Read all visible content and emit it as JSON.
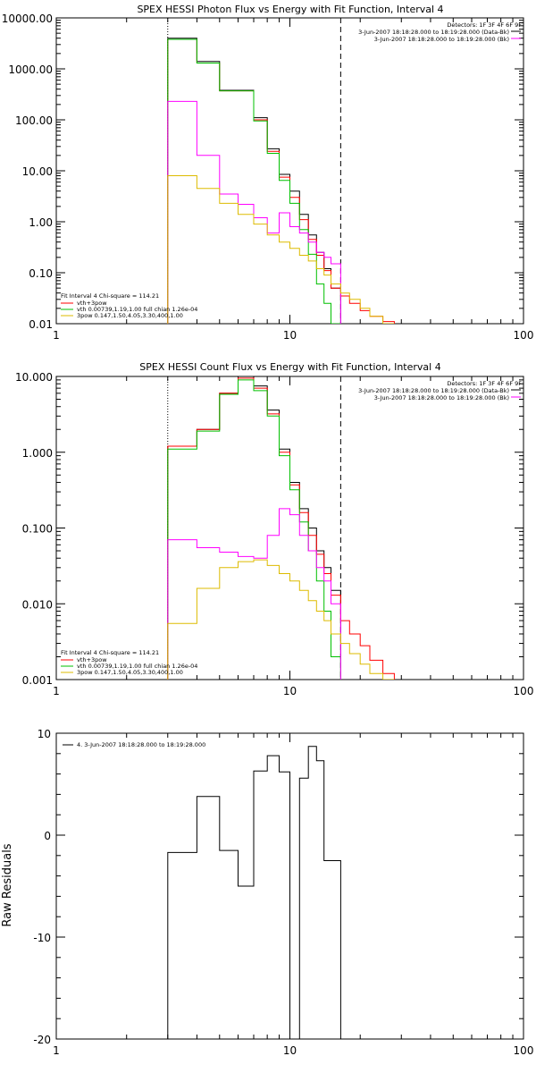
{
  "chart_data": [
    {
      "type": "line",
      "title": "SPEX HESSI Photon Flux vs Energy with Fit Function, Interval 4",
      "xscale": "log",
      "yscale": "log",
      "xlim": [
        1,
        100
      ],
      "ylim": [
        0.01,
        10000
      ],
      "xticks": [
        "1",
        "10",
        "100"
      ],
      "yticks": [
        "10000.00",
        "1000.00",
        "100.00",
        "10.00",
        "1.00",
        "0.10",
        "0.01"
      ],
      "vlines": [
        {
          "x": 3,
          "style": "dotted"
        },
        {
          "x": 16.5,
          "style": "dashed"
        }
      ],
      "legend_top_right": [
        "Detectors: 1F 3F 4F 6F 9F",
        "3-Jun-2007 18:18:28.000 to 18:19:28.000 (Data-Bk)",
        "3-Jun-2007 18:18:28.000 to 18:19:28.000 (Bk)"
      ],
      "legend_bottom_left": [
        "Fit Interval  4    Chi-square = 114.21",
        "vth+3pow",
        "vth 0.00739,1.19,1.00  full chian 1.26e-04",
        "3pow 0.147,1.50,4.05,3.30,400,1.00"
      ],
      "series": [
        {
          "color": "#000000",
          "edges": [
            3,
            3.5,
            4,
            4.5,
            5,
            6,
            7,
            8,
            9,
            10,
            11,
            12,
            13,
            14,
            15,
            16.5
          ],
          "values": [
            4000,
            4000,
            1400,
            1400,
            380,
            380,
            110,
            27,
            8.5,
            4.0,
            1.4,
            0.55,
            0.25,
            0.12,
            0.05
          ]
        },
        {
          "color": "#ff0000",
          "edges": [
            3,
            3.5,
            4,
            4.5,
            5,
            6,
            7,
            8,
            9,
            10,
            11,
            12,
            13,
            14,
            15,
            16.5,
            18,
            20,
            22,
            25,
            28
          ],
          "values": [
            3800,
            3800,
            1300,
            1300,
            370,
            370,
            100,
            24,
            7.5,
            3.0,
            1.1,
            0.45,
            0.22,
            0.11,
            0.05,
            0.035,
            0.025,
            0.018,
            0.014,
            0.011
          ]
        },
        {
          "color": "#00c000",
          "edges": [
            3,
            3.5,
            4,
            4.5,
            5,
            6,
            7,
            8,
            9,
            10,
            11,
            12,
            13,
            14,
            15,
            16.5
          ],
          "values": [
            3800,
            3800,
            1300,
            1300,
            370,
            370,
            95,
            22,
            6.5,
            2.3,
            0.7,
            0.23,
            0.06,
            0.025,
            0.008
          ]
        },
        {
          "color": "#ff00ff",
          "edges": [
            3,
            4,
            5,
            6,
            7,
            8,
            9,
            10,
            11,
            12,
            13,
            14,
            15,
            16.5
          ],
          "values": [
            230,
            20,
            3.5,
            2.2,
            1.2,
            0.6,
            1.5,
            0.8,
            0.6,
            0.4,
            0.25,
            0.2,
            0.15
          ]
        },
        {
          "color": "#ddbb00",
          "edges": [
            3,
            3.5,
            4,
            4.5,
            5,
            6,
            7,
            8,
            9,
            10,
            11,
            12,
            13,
            14,
            15,
            16.5,
            18,
            20,
            22,
            25,
            28
          ],
          "values": [
            8,
            8,
            4.5,
            4.5,
            2.3,
            1.4,
            0.9,
            0.55,
            0.4,
            0.3,
            0.22,
            0.17,
            0.12,
            0.09,
            0.06,
            0.04,
            0.03,
            0.02,
            0.014,
            0.01
          ]
        }
      ]
    },
    {
      "type": "line",
      "title": "SPEX HESSI Count Flux vs Energy with Fit Function, Interval 4",
      "xscale": "log",
      "yscale": "log",
      "xlim": [
        1,
        100
      ],
      "ylim": [
        0.001,
        10
      ],
      "xticks": [
        "1",
        "10",
        "100"
      ],
      "yticks": [
        "10.000",
        "1.000",
        "0.100",
        "0.010",
        "0.001"
      ],
      "vlines": [
        {
          "x": 3,
          "style": "dotted"
        },
        {
          "x": 16.5,
          "style": "dashed"
        }
      ],
      "legend_top_right": [
        "Detectors: 1F 3F 4F 6F 9F",
        "3-Jun-2007 18:18:28.000 to 18:19:28.000 (Data-Bk)",
        "3-Jun-2007 18:18:28.000 to 18:19:28.000 (Bk)"
      ],
      "legend_bottom_left": [
        "Fit Interval  4    Chi-square = 114.21",
        "vth+3pow",
        "vth 0.00739,1.19,1.00  full chian 1.26e-04",
        "3pow 0.147,1.50,4.05,3.30,400,1.00"
      ],
      "series": [
        {
          "color": "#000000",
          "edges": [
            3,
            4,
            5,
            6,
            7,
            8,
            9,
            10,
            11,
            12,
            13,
            14,
            15,
            16.5
          ],
          "values": [
            1.2,
            2.0,
            6.0,
            10,
            7.5,
            3.6,
            1.1,
            0.4,
            0.18,
            0.1,
            0.05,
            0.03,
            0.015
          ]
        },
        {
          "color": "#ff0000",
          "edges": [
            3,
            4,
            5,
            6,
            7,
            8,
            9,
            10,
            11,
            12,
            13,
            14,
            15,
            16.5,
            18,
            20,
            22,
            25,
            28
          ],
          "values": [
            1.2,
            2.0,
            6.0,
            9.5,
            7.0,
            3.2,
            1.0,
            0.37,
            0.16,
            0.08,
            0.045,
            0.025,
            0.013,
            0.006,
            0.004,
            0.0028,
            0.0018,
            0.0012
          ]
        },
        {
          "color": "#00c000",
          "edges": [
            3,
            4,
            5,
            6,
            7,
            8,
            9,
            10,
            11,
            12,
            13,
            14,
            15,
            16.5
          ],
          "values": [
            1.1,
            1.9,
            5.8,
            9.0,
            6.5,
            3.0,
            0.9,
            0.32,
            0.12,
            0.05,
            0.02,
            0.008,
            0.002
          ]
        },
        {
          "color": "#ff00ff",
          "edges": [
            3,
            4,
            5,
            6,
            7,
            8,
            9,
            10,
            11,
            12,
            13,
            14,
            15,
            16.5
          ],
          "values": [
            0.07,
            0.055,
            0.048,
            0.042,
            0.04,
            0.08,
            0.18,
            0.15,
            0.08,
            0.05,
            0.03,
            0.02,
            0.01
          ]
        },
        {
          "color": "#ddbb00",
          "edges": [
            3,
            4,
            5,
            6,
            7,
            8,
            9,
            10,
            11,
            12,
            13,
            14,
            15,
            16.5,
            18,
            20,
            22,
            25,
            28
          ],
          "values": [
            0.0055,
            0.016,
            0.03,
            0.036,
            0.038,
            0.032,
            0.025,
            0.02,
            0.015,
            0.011,
            0.008,
            0.006,
            0.004,
            0.003,
            0.0022,
            0.0016,
            0.0012,
            0.001
          ]
        }
      ]
    },
    {
      "type": "line",
      "title": "",
      "xscale": "log",
      "yscale": "linear",
      "xlim": [
        1,
        100
      ],
      "ylim": [
        -20,
        10
      ],
      "xticks": [
        "1",
        "10",
        "100"
      ],
      "yticks": [
        "10",
        "0",
        "-10",
        "-20"
      ],
      "ylabel": "Raw Residuals",
      "legend": [
        "4. 3-Jun-2007 18:18:28.000 to 18:19:28.000"
      ],
      "series": [
        {
          "color": "#000000",
          "edges": [
            3,
            4,
            5,
            6,
            7,
            8,
            9,
            10,
            11,
            12,
            13,
            14,
            15,
            16.5
          ],
          "values": [
            -1.7,
            3.8,
            -1.5,
            -5.0,
            6.3,
            7.8,
            6.2,
            -20,
            5.6,
            8.7,
            7.3,
            -2.5,
            -2.5
          ]
        }
      ]
    }
  ]
}
